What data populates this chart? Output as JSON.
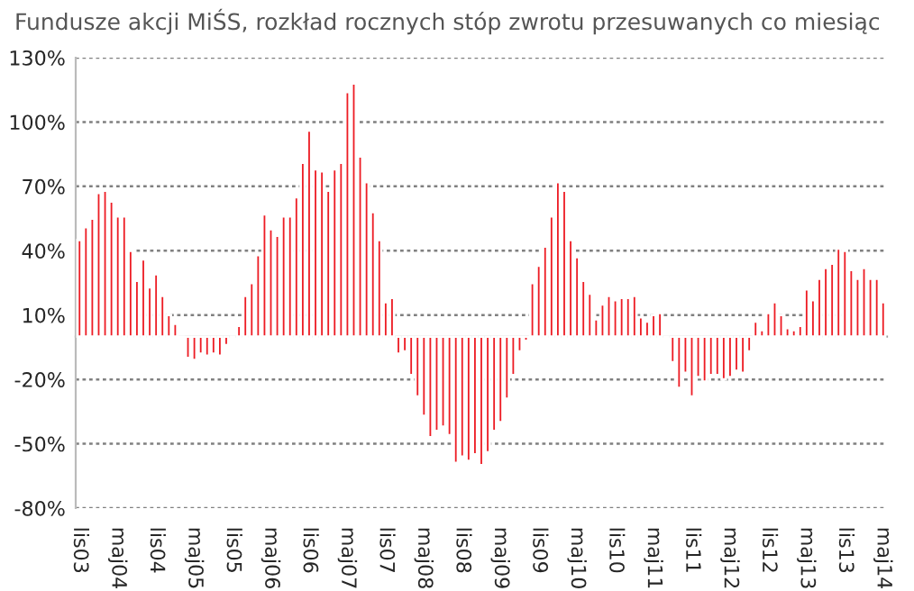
{
  "chart_data": {
    "type": "bar",
    "title": "Fundusze akcji MiŚS, rozkład rocznych stóp zwrotu przesuwanych co miesiąc",
    "categories": [
      "lis03",
      null,
      null,
      null,
      null,
      null,
      "maj04",
      null,
      null,
      null,
      null,
      null,
      "lis04",
      null,
      null,
      null,
      null,
      null,
      "maj05",
      null,
      null,
      null,
      null,
      null,
      "lis05",
      null,
      null,
      null,
      null,
      null,
      "maj06",
      null,
      null,
      null,
      null,
      null,
      "lis06",
      null,
      null,
      null,
      null,
      null,
      "maj07",
      null,
      null,
      null,
      null,
      null,
      "lis07",
      null,
      null,
      null,
      null,
      null,
      "maj08",
      null,
      null,
      null,
      null,
      null,
      "lis08",
      null,
      null,
      null,
      null,
      null,
      "maj09",
      null,
      null,
      null,
      null,
      null,
      "lis09",
      null,
      null,
      null,
      null,
      null,
      "maj10",
      null,
      null,
      null,
      null,
      null,
      "lis10",
      null,
      null,
      null,
      null,
      null,
      "maj11",
      null,
      null,
      null,
      null,
      null,
      "lis11",
      null,
      null,
      null,
      null,
      null,
      "maj12",
      null,
      null,
      null,
      null,
      null,
      "lis12",
      null,
      null,
      null,
      null,
      null,
      "maj13",
      null,
      null,
      null,
      null,
      null,
      "lis13",
      null,
      null,
      null,
      null,
      null,
      "maj14"
    ],
    "values": [
      45,
      51,
      55,
      67,
      68,
      63,
      56,
      56,
      40,
      26,
      36,
      23,
      29,
      19,
      10,
      6,
      -1,
      -10,
      -11,
      -8,
      -9,
      -8,
      -9,
      -4,
      -1,
      5,
      19,
      25,
      38,
      57,
      50,
      47,
      56,
      56,
      65,
      81,
      96,
      78,
      77,
      68,
      78,
      81,
      114,
      118,
      84,
      72,
      58,
      45,
      16,
      18,
      -8,
      -7,
      -18,
      -28,
      -37,
      -47,
      -44,
      -42,
      -46,
      -59,
      -56,
      -58,
      -55,
      -60,
      -54,
      -44,
      -40,
      -29,
      -18,
      -7,
      -2,
      25,
      33,
      42,
      56,
      72,
      68,
      45,
      37,
      26,
      20,
      8,
      15,
      19,
      17,
      18,
      18,
      19,
      9,
      7,
      10,
      11,
      -1,
      -12,
      -24,
      -17,
      -28,
      -19,
      -21,
      -18,
      -18,
      -20,
      -19,
      -16,
      -17,
      -7,
      7,
      3,
      11,
      16,
      10,
      4,
      3,
      5,
      22,
      17,
      27,
      32,
      34,
      41,
      40,
      31,
      27,
      32,
      27,
      27,
      16
    ],
    "color": "#ed1c24",
    "ylim": [
      -80,
      130
    ],
    "yticks": [
      {
        "value": -80,
        "label": "-80%"
      },
      {
        "value": -50,
        "label": "-50%"
      },
      {
        "value": -20,
        "label": "-20%"
      },
      {
        "value": 10,
        "label": "10%"
      },
      {
        "value": 40,
        "label": "40%"
      },
      {
        "value": 70,
        "label": "70%"
      },
      {
        "value": 100,
        "label": "100%"
      },
      {
        "value": 130,
        "label": "130%"
      }
    ],
    "grid": "y"
  }
}
